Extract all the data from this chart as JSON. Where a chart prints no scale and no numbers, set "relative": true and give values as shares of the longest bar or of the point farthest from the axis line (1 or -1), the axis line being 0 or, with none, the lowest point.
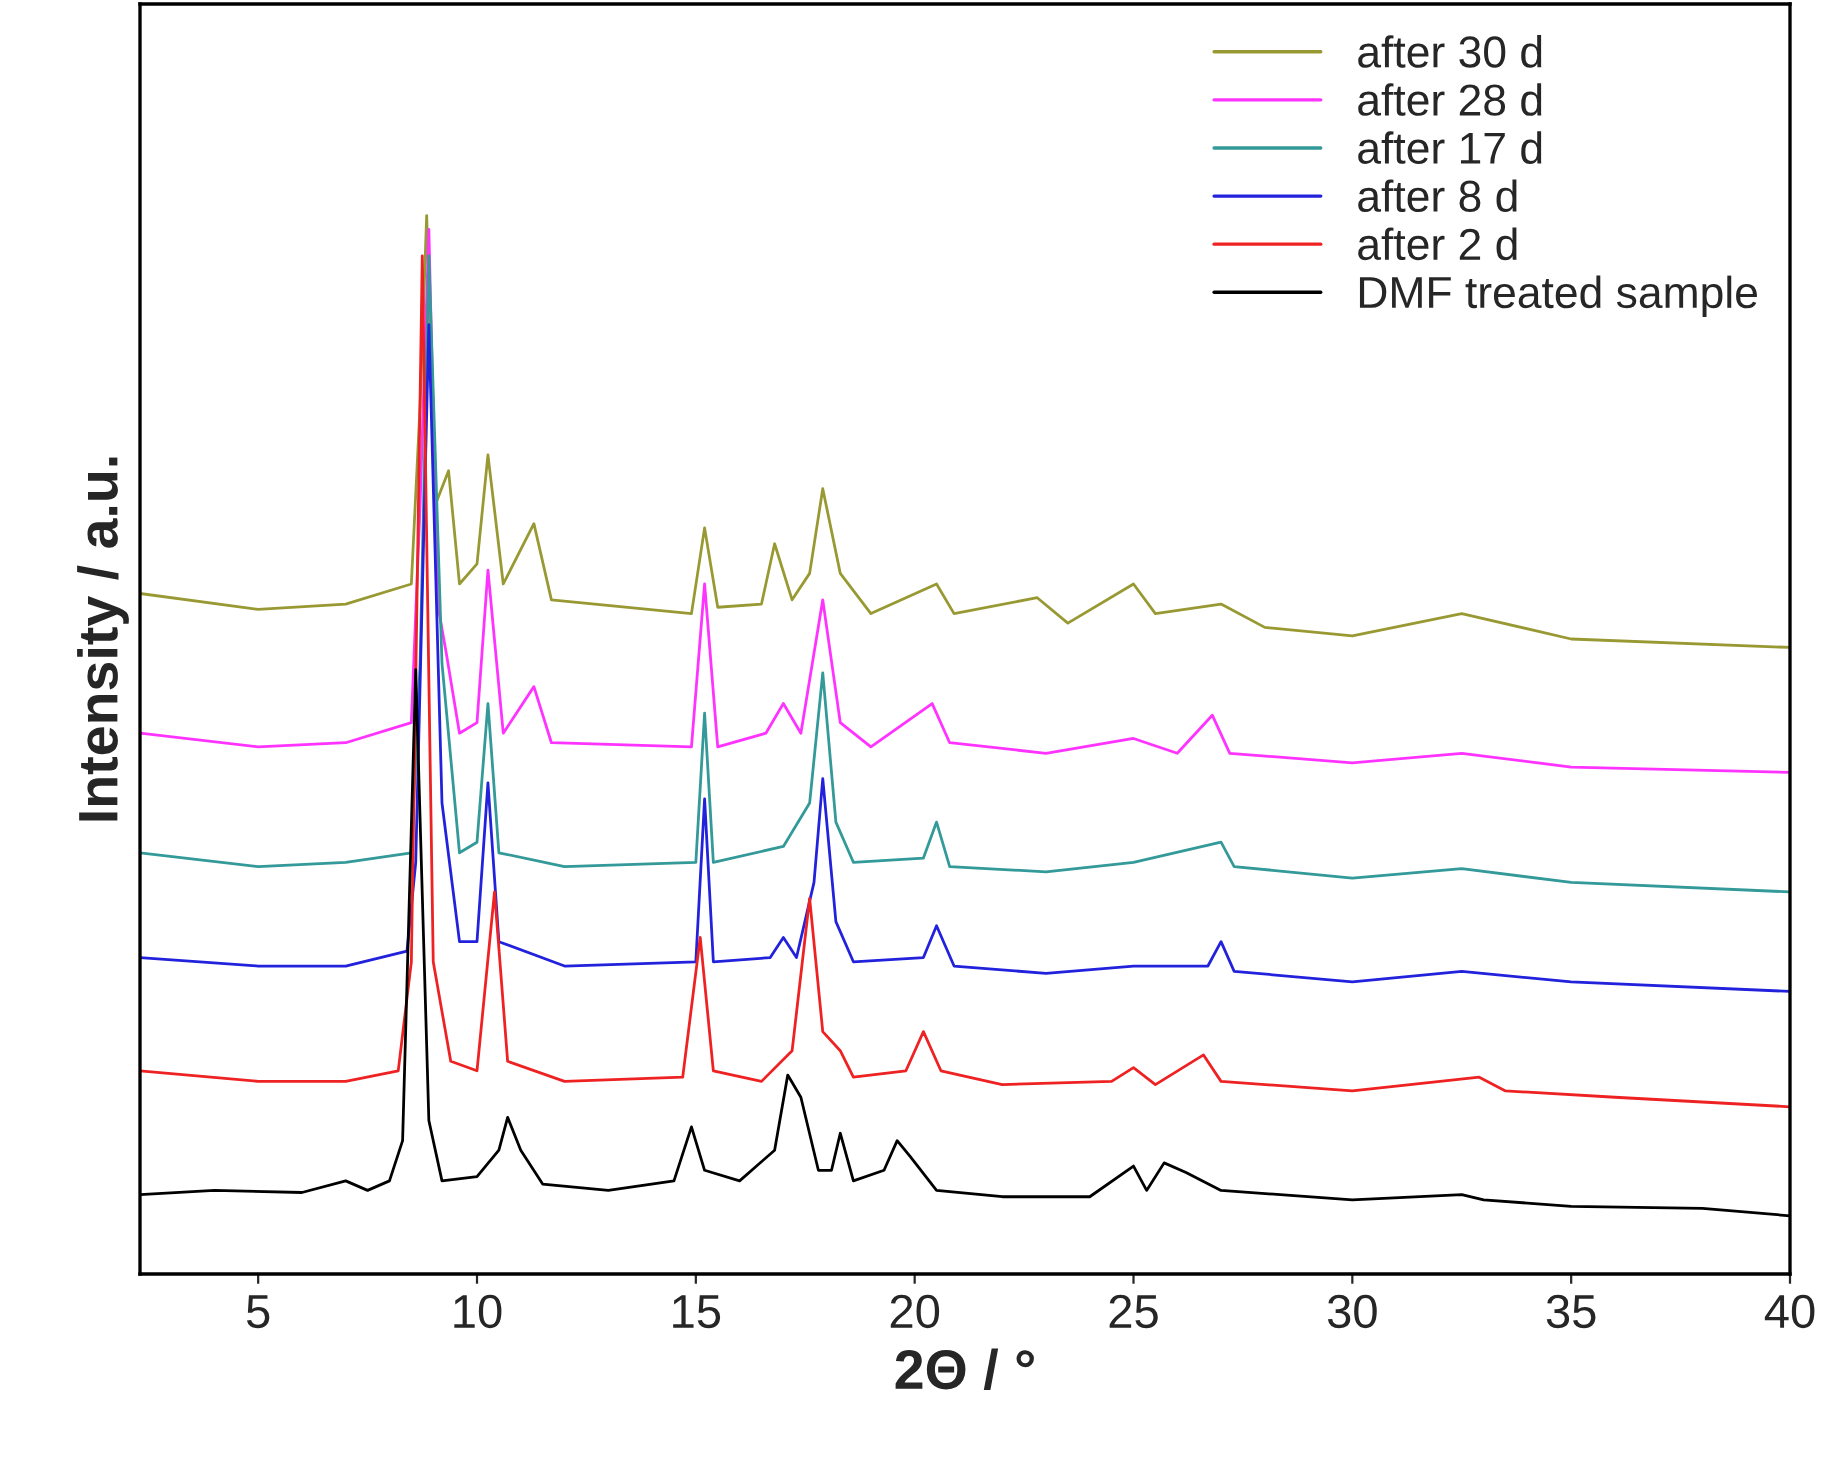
{
  "chart_data": {
    "type": "line",
    "relative": true,
    "xlabel": "2Θ / °",
    "ylabel": "Intensity / a.u.",
    "xlim": [
      2.3,
      40
    ],
    "xticks": [
      5,
      10,
      15,
      20,
      25,
      30,
      35,
      40
    ],
    "tick_labels": "x",
    "legend": "top right",
    "grid": false,
    "series": [
      {
        "name": "after 30 d",
        "color": "#999933",
        "x": [
          2.3,
          5,
          7,
          8.5,
          8.7,
          8.85,
          9.05,
          9.35,
          9.6,
          10.0,
          10.25,
          10.6,
          11.3,
          11.7,
          14.9,
          15.2,
          15.5,
          16.5,
          16.8,
          17.2,
          17.6,
          17.9,
          18.3,
          19,
          20.5,
          20.9,
          22.8,
          23.5,
          25,
          25.5,
          27,
          28,
          30,
          32.5,
          35,
          40
        ],
        "values": [
          0.643,
          0.628,
          0.633,
          0.652,
          0.821,
          1.0,
          0.727,
          0.759,
          0.652,
          0.671,
          0.774,
          0.652,
          0.709,
          0.637,
          0.624,
          0.705,
          0.63,
          0.633,
          0.69,
          0.637,
          0.662,
          0.742,
          0.662,
          0.624,
          0.652,
          0.624,
          0.639,
          0.615,
          0.652,
          0.624,
          0.633,
          0.611,
          0.603,
          0.624,
          0.6,
          0.592
        ]
      },
      {
        "name": "after 28 d",
        "color": "#ff33ff",
        "x": [
          2.3,
          5,
          7,
          8.5,
          8.7,
          8.9,
          9.1,
          9.3,
          9.6,
          10.0,
          10.25,
          10.6,
          11.3,
          11.7,
          14.9,
          15.2,
          15.5,
          16.6,
          17.0,
          17.4,
          17.9,
          18.3,
          19,
          20.4,
          20.8,
          23,
          25,
          26,
          26.8,
          27.2,
          30,
          32.5,
          35,
          40
        ],
        "values": [
          0.511,
          0.498,
          0.502,
          0.521,
          0.727,
          0.987,
          0.633,
          0.586,
          0.511,
          0.521,
          0.665,
          0.511,
          0.555,
          0.502,
          0.498,
          0.652,
          0.498,
          0.511,
          0.539,
          0.511,
          0.637,
          0.521,
          0.498,
          0.539,
          0.502,
          0.492,
          0.506,
          0.492,
          0.528,
          0.492,
          0.483,
          0.492,
          0.479,
          0.474
        ]
      },
      {
        "name": "after 17 d",
        "color": "#339999",
        "x": [
          2.3,
          5,
          7,
          8.5,
          8.7,
          8.9,
          9.2,
          9.6,
          10.0,
          10.25,
          10.5,
          12,
          15.0,
          15.2,
          15.4,
          17.0,
          17.6,
          17.9,
          18.2,
          18.6,
          20.2,
          20.5,
          20.8,
          23,
          25,
          27,
          27.3,
          30,
          32.5,
          35,
          40
        ],
        "values": [
          0.398,
          0.385,
          0.389,
          0.398,
          0.577,
          0.962,
          0.577,
          0.398,
          0.408,
          0.539,
          0.398,
          0.385,
          0.389,
          0.53,
          0.389,
          0.404,
          0.445,
          0.568,
          0.427,
          0.389,
          0.393,
          0.427,
          0.385,
          0.38,
          0.389,
          0.408,
          0.385,
          0.374,
          0.383,
          0.37,
          0.361
        ]
      },
      {
        "name": "after 8 d",
        "color": "#2222dd",
        "x": [
          2.3,
          5,
          7,
          8.4,
          8.6,
          8.9,
          9.2,
          9.6,
          10.0,
          10.25,
          10.5,
          12,
          15.0,
          15.2,
          15.4,
          16.7,
          17.0,
          17.3,
          17.7,
          17.9,
          18.2,
          18.6,
          20.2,
          20.5,
          20.9,
          23,
          25,
          26.7,
          27,
          27.3,
          30,
          32.5,
          35,
          40
        ],
        "values": [
          0.299,
          0.291,
          0.291,
          0.305,
          0.389,
          0.897,
          0.445,
          0.314,
          0.314,
          0.464,
          0.314,
          0.291,
          0.295,
          0.449,
          0.295,
          0.299,
          0.318,
          0.299,
          0.37,
          0.468,
          0.333,
          0.295,
          0.299,
          0.329,
          0.291,
          0.284,
          0.291,
          0.291,
          0.314,
          0.286,
          0.276,
          0.286,
          0.276,
          0.267
        ]
      },
      {
        "name": "after 2 d",
        "color": "#ee2222",
        "x": [
          2.3,
          5,
          7,
          8.2,
          8.5,
          8.75,
          9.0,
          9.4,
          10,
          10.4,
          10.7,
          12,
          14.7,
          15.1,
          15.4,
          16.5,
          17.2,
          17.6,
          17.9,
          18.3,
          18.6,
          19.8,
          20.2,
          20.6,
          22,
          24.5,
          25,
          25.5,
          26.6,
          27,
          30,
          32.9,
          33.5,
          36,
          40
        ],
        "values": [
          0.192,
          0.182,
          0.182,
          0.192,
          0.295,
          0.962,
          0.295,
          0.201,
          0.192,
          0.361,
          0.201,
          0.182,
          0.186,
          0.318,
          0.192,
          0.182,
          0.211,
          0.355,
          0.229,
          0.211,
          0.186,
          0.192,
          0.229,
          0.192,
          0.179,
          0.182,
          0.195,
          0.179,
          0.207,
          0.182,
          0.173,
          0.186,
          0.173,
          0.167,
          0.158
        ]
      },
      {
        "name": "DMF treated sample",
        "color": "#000000",
        "x": [
          2.3,
          4,
          6,
          7,
          7.5,
          8.0,
          8.3,
          8.6,
          8.9,
          9.2,
          10,
          10.5,
          10.7,
          11,
          11.5,
          13,
          14.5,
          14.9,
          15.2,
          16,
          16.8,
          17.1,
          17.4,
          17.8,
          18.1,
          18.3,
          18.6,
          19.3,
          19.6,
          19.9,
          20.5,
          22,
          24,
          25,
          25.3,
          25.7,
          26.2,
          27,
          30,
          32.5,
          33,
          35,
          38,
          40
        ],
        "values": [
          0.075,
          0.079,
          0.077,
          0.088,
          0.079,
          0.088,
          0.126,
          0.571,
          0.145,
          0.088,
          0.092,
          0.117,
          0.148,
          0.117,
          0.085,
          0.079,
          0.088,
          0.139,
          0.098,
          0.088,
          0.117,
          0.188,
          0.167,
          0.098,
          0.098,
          0.133,
          0.088,
          0.098,
          0.126,
          0.111,
          0.079,
          0.073,
          0.073,
          0.102,
          0.079,
          0.105,
          0.096,
          0.079,
          0.07,
          0.075,
          0.07,
          0.064,
          0.062,
          0.055
        ]
      }
    ]
  }
}
